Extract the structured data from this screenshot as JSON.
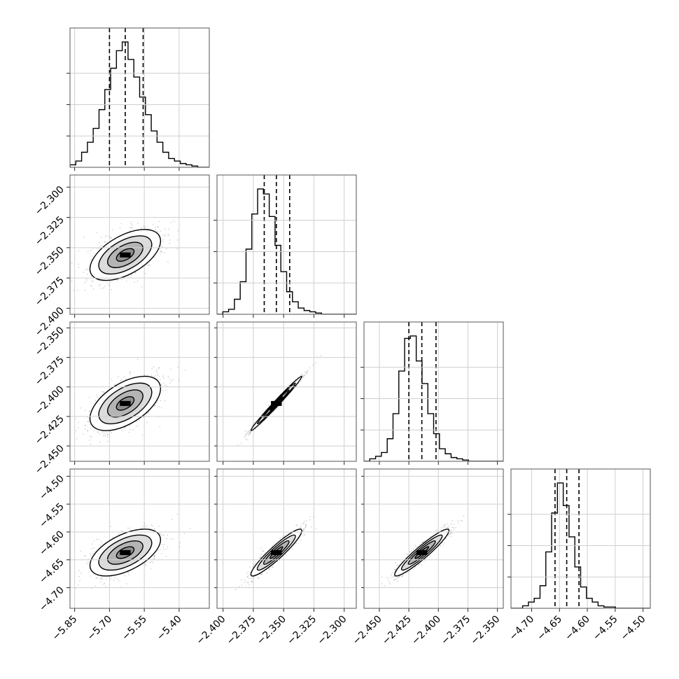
{
  "chart_data": {
    "type": "corner",
    "parameters": [
      {
        "ticks": [
          -5.85,
          -5.7,
          -5.55,
          -5.4
        ],
        "tick_labels": [
          "−5.85",
          "−5.70",
          "−5.55",
          "−5.40"
        ],
        "range": [
          -5.87,
          -5.27
        ],
        "quantiles": [
          -5.7,
          -5.632,
          -5.555
        ],
        "mean": -5.632,
        "sd": 0.076
      },
      {
        "ticks": [
          -2.4,
          -2.375,
          -2.35,
          -2.325,
          -2.3
        ],
        "tick_labels": [
          "−2.400",
          "−2.375",
          "−2.350",
          "−2.325",
          "−2.300"
        ],
        "range": [
          -2.405,
          -2.29
        ],
        "quantiles": [
          -2.366,
          -2.356,
          -2.345
        ],
        "mean": -2.356,
        "sd": 0.0105
      },
      {
        "ticks": [
          -2.45,
          -2.425,
          -2.4,
          -2.375,
          -2.35
        ],
        "tick_labels": [
          "−2.450",
          "−2.425",
          "−2.400",
          "−2.375",
          "−2.350"
        ],
        "range": [
          -2.463,
          -2.345
        ],
        "quantiles": [
          -2.425,
          -2.414,
          -2.402
        ],
        "mean": -2.414,
        "sd": 0.0115
      },
      {
        "ticks": [
          -4.7,
          -4.65,
          -4.6,
          -4.55,
          -4.5
        ],
        "tick_labels": [
          "−4.70",
          "−4.65",
          "−4.60",
          "−4.55",
          "−4.50"
        ],
        "range": [
          -4.737,
          -4.487
        ],
        "quantiles": [
          -4.658,
          -4.637,
          -4.615
        ],
        "mean": -4.637,
        "sd": 0.021
      }
    ],
    "hist_heights": [
      [
        0.02,
        0.05,
        0.12,
        0.2,
        0.31,
        0.46,
        0.62,
        0.79,
        0.93,
        1.0,
        0.86,
        0.72,
        0.56,
        0.42,
        0.29,
        0.2,
        0.12,
        0.07,
        0.05,
        0.03,
        0.02,
        0.01,
        0.0,
        0.0
      ],
      [
        0.0,
        0.02,
        0.04,
        0.12,
        0.26,
        0.52,
        0.8,
        1.0,
        0.96,
        0.78,
        0.55,
        0.34,
        0.18,
        0.1,
        0.05,
        0.03,
        0.02,
        0.01,
        0.0,
        0.0,
        0.0,
        0.0,
        0.0,
        0.0
      ],
      [
        0.0,
        0.02,
        0.04,
        0.07,
        0.18,
        0.38,
        0.72,
        0.98,
        1.0,
        0.8,
        0.62,
        0.38,
        0.22,
        0.1,
        0.06,
        0.03,
        0.02,
        0.01,
        0.0,
        0.0,
        0.0,
        0.0,
        0.0,
        0.0
      ],
      [
        0.0,
        0.0,
        0.02,
        0.05,
        0.08,
        0.18,
        0.45,
        0.76,
        1.0,
        0.82,
        0.57,
        0.33,
        0.17,
        0.08,
        0.05,
        0.02,
        0.01,
        0.01,
        0.0,
        0.0,
        0.0,
        0.0,
        0.0,
        0.0
      ]
    ],
    "correlations": [
      [
        1.0,
        0.55,
        0.55,
        0.55
      ],
      [
        0.55,
        1.0,
        0.99,
        0.93
      ],
      [
        0.55,
        0.99,
        1.0,
        0.94
      ],
      [
        0.55,
        0.93,
        0.94,
        1.0
      ]
    ],
    "contour_levels_sigma": [
      0.5,
      1.0,
      1.5,
      2.0
    ],
    "grid": true
  }
}
